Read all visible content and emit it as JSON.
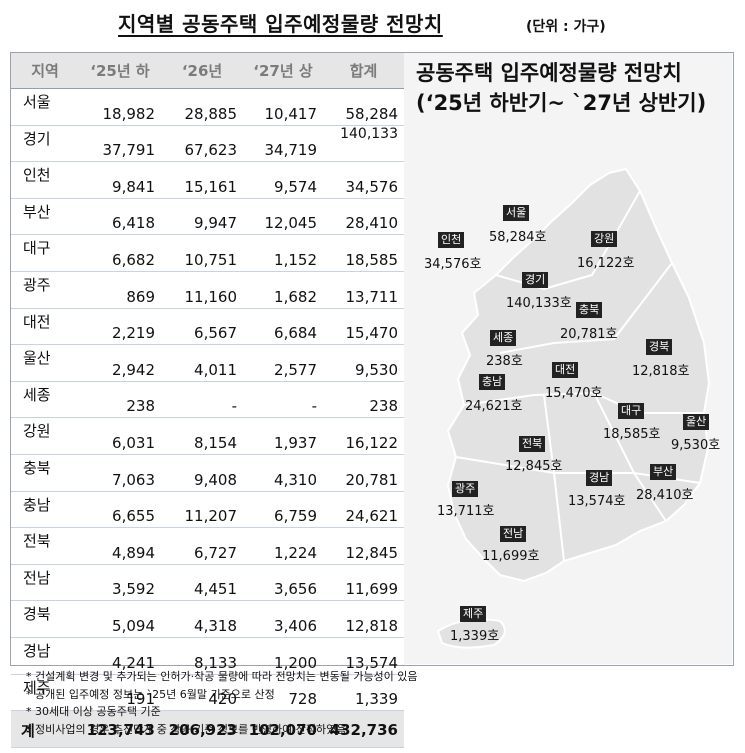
{
  "title": "지역별 공동주택 입주예정물량 전망치",
  "unit": "(단위 : 가구)",
  "table": {
    "headers": [
      "지역",
      "‘25년 하",
      "‘26년",
      "‘27년 상",
      "합계"
    ],
    "rows": [
      [
        "서울",
        "18,982",
        "28,885",
        "10,417",
        "58,284"
      ],
      [
        "경기",
        "37,791",
        "67,623",
        "34,719",
        "140,133"
      ],
      [
        "인천",
        "9,841",
        "15,161",
        "9,574",
        "34,576"
      ],
      [
        "부산",
        "6,418",
        "9,947",
        "12,045",
        "28,410"
      ],
      [
        "대구",
        "6,682",
        "10,751",
        "1,152",
        "18,585"
      ],
      [
        "광주",
        "869",
        "11,160",
        "1,682",
        "13,711"
      ],
      [
        "대전",
        "2,219",
        "6,567",
        "6,684",
        "15,470"
      ],
      [
        "울산",
        "2,942",
        "4,011",
        "2,577",
        "9,530"
      ],
      [
        "세종",
        "238",
        "-",
        "-",
        "238"
      ],
      [
        "강원",
        "6,031",
        "8,154",
        "1,937",
        "16,122"
      ],
      [
        "충북",
        "7,063",
        "9,408",
        "4,310",
        "20,781"
      ],
      [
        "충남",
        "6,655",
        "11,207",
        "6,759",
        "24,621"
      ],
      [
        "전북",
        "4,894",
        "6,727",
        "1,224",
        "12,845"
      ],
      [
        "전남",
        "3,592",
        "4,451",
        "3,656",
        "11,699"
      ],
      [
        "경북",
        "5,094",
        "4,318",
        "3,406",
        "12,818"
      ],
      [
        "경남",
        "4,241",
        "8,133",
        "1,200",
        "13,574"
      ],
      [
        "제주",
        "191",
        "420",
        "728",
        "1,339"
      ]
    ],
    "total": [
      "계",
      "123,743",
      "206,923",
      "102,070",
      "432,736"
    ]
  },
  "map": {
    "title_line1": "공동주택 입주예정물량 전망치",
    "title_line2": "(‘25년 하반기~ `27년 상반기)",
    "labels": [
      {
        "name": "서울",
        "value": "58,284호"
      },
      {
        "name": "인천",
        "value": "34,576호"
      },
      {
        "name": "강원",
        "value": "16,122호"
      },
      {
        "name": "경기",
        "value": "140,133호"
      },
      {
        "name": "충북",
        "value": "20,781호"
      },
      {
        "name": "세종",
        "value": "238호"
      },
      {
        "name": "경북",
        "value": "12,818호"
      },
      {
        "name": "충남",
        "value": "24,621호"
      },
      {
        "name": "대전",
        "value": "15,470호"
      },
      {
        "name": "대구",
        "value": "18,585호"
      },
      {
        "name": "울산",
        "value": "9,530호"
      },
      {
        "name": "전북",
        "value": "12,845호"
      },
      {
        "name": "광주",
        "value": "13,711호"
      },
      {
        "name": "경남",
        "value": "13,574호"
      },
      {
        "name": "부산",
        "value": "28,410호"
      },
      {
        "name": "전남",
        "value": "11,699호"
      },
      {
        "name": "제주",
        "value": "1,339호"
      }
    ]
  },
  "notes": [
    "* 건설계획 변경 및 추가되는 인허가·착공 물량에 따라 전망치는 변동될 가능성이 있음",
    "* 공개된 입주예정 정보는 `25년 6월말 기준으로 산정",
    "* 30세대 이상 공동주택 기준",
    "* 정비사업의 경우 추진단계 중 착공 기준 정보를 반영하여 산정하였음"
  ]
}
